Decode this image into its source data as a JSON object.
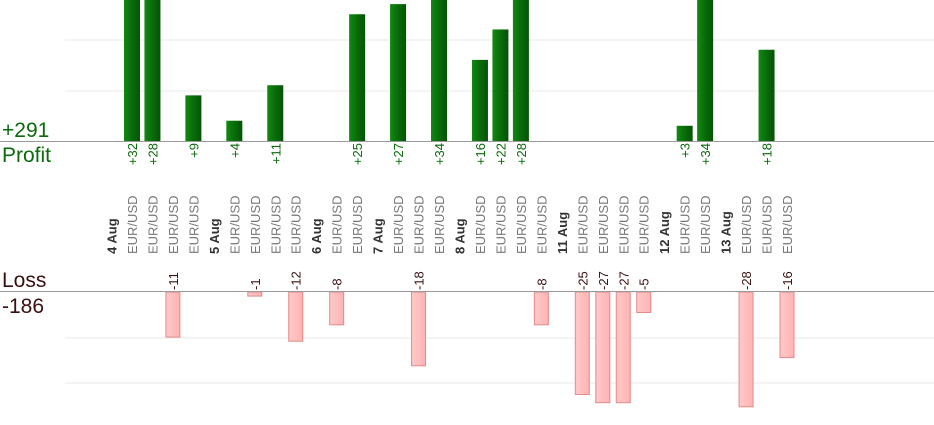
{
  "summary": {
    "profit_total": "+291",
    "profit_label": "Profit",
    "loss_label": "Loss",
    "loss_total": "-186"
  },
  "colors": {
    "profit_bar": "#0a6b0a",
    "profit_text": "#0b6a0b",
    "loss_bar": "#ffb3b3",
    "loss_border": "#e48a8a",
    "loss_text": "#3a1010",
    "date_text": "#333333",
    "pair_text": "#777777",
    "gridline": "#e8e8e8",
    "baseline": "#999999"
  },
  "chart_data": {
    "type": "bar",
    "ylim_profit": [
      0,
      30
    ],
    "ylim_loss": [
      -25,
      0
    ],
    "slots": [
      {
        "label": "4 Aug",
        "kind": "date"
      },
      {
        "label": "EUR/USD",
        "kind": "trade",
        "value": 32
      },
      {
        "label": "EUR/USD",
        "kind": "trade",
        "value": 28
      },
      {
        "label": "EUR/USD",
        "kind": "trade",
        "value": -11
      },
      {
        "label": "EUR/USD",
        "kind": "trade",
        "value": 9
      },
      {
        "label": "5 Aug",
        "kind": "date"
      },
      {
        "label": "EUR/USD",
        "kind": "trade",
        "value": 4
      },
      {
        "label": "EUR/USD",
        "kind": "trade",
        "value": -1
      },
      {
        "label": "EUR/USD",
        "kind": "trade",
        "value": 11
      },
      {
        "label": "EUR/USD",
        "kind": "trade",
        "value": -12
      },
      {
        "label": "6 Aug",
        "kind": "date"
      },
      {
        "label": "EUR/USD",
        "kind": "trade",
        "value": -8
      },
      {
        "label": "EUR/USD",
        "kind": "trade",
        "value": 25
      },
      {
        "label": "7 Aug",
        "kind": "date"
      },
      {
        "label": "EUR/USD",
        "kind": "trade",
        "value": 27
      },
      {
        "label": "EUR/USD",
        "kind": "trade",
        "value": -18
      },
      {
        "label": "EUR/USD",
        "kind": "trade",
        "value": 34
      },
      {
        "label": "8 Aug",
        "kind": "date"
      },
      {
        "label": "EUR/USD",
        "kind": "trade",
        "value": 16
      },
      {
        "label": "EUR/USD",
        "kind": "trade",
        "value": 22
      },
      {
        "label": "EUR/USD",
        "kind": "trade",
        "value": 28
      },
      {
        "label": "EUR/USD",
        "kind": "trade",
        "value": -8
      },
      {
        "label": "11 Aug",
        "kind": "date"
      },
      {
        "label": "EUR/USD",
        "kind": "trade",
        "value": -25
      },
      {
        "label": "EUR/USD",
        "kind": "trade",
        "value": -27
      },
      {
        "label": "EUR/USD",
        "kind": "trade",
        "value": -27
      },
      {
        "label": "EUR/USD",
        "kind": "trade",
        "value": -5
      },
      {
        "label": "12 Aug",
        "kind": "date"
      },
      {
        "label": "EUR/USD",
        "kind": "trade",
        "value": 3
      },
      {
        "label": "EUR/USD",
        "kind": "trade",
        "value": 34
      },
      {
        "label": "13 Aug",
        "kind": "date"
      },
      {
        "label": "EUR/USD",
        "kind": "trade",
        "value": -28
      },
      {
        "label": "EUR/USD",
        "kind": "trade",
        "value": 18
      },
      {
        "label": "EUR/USD",
        "kind": "trade",
        "value": -16
      }
    ]
  }
}
